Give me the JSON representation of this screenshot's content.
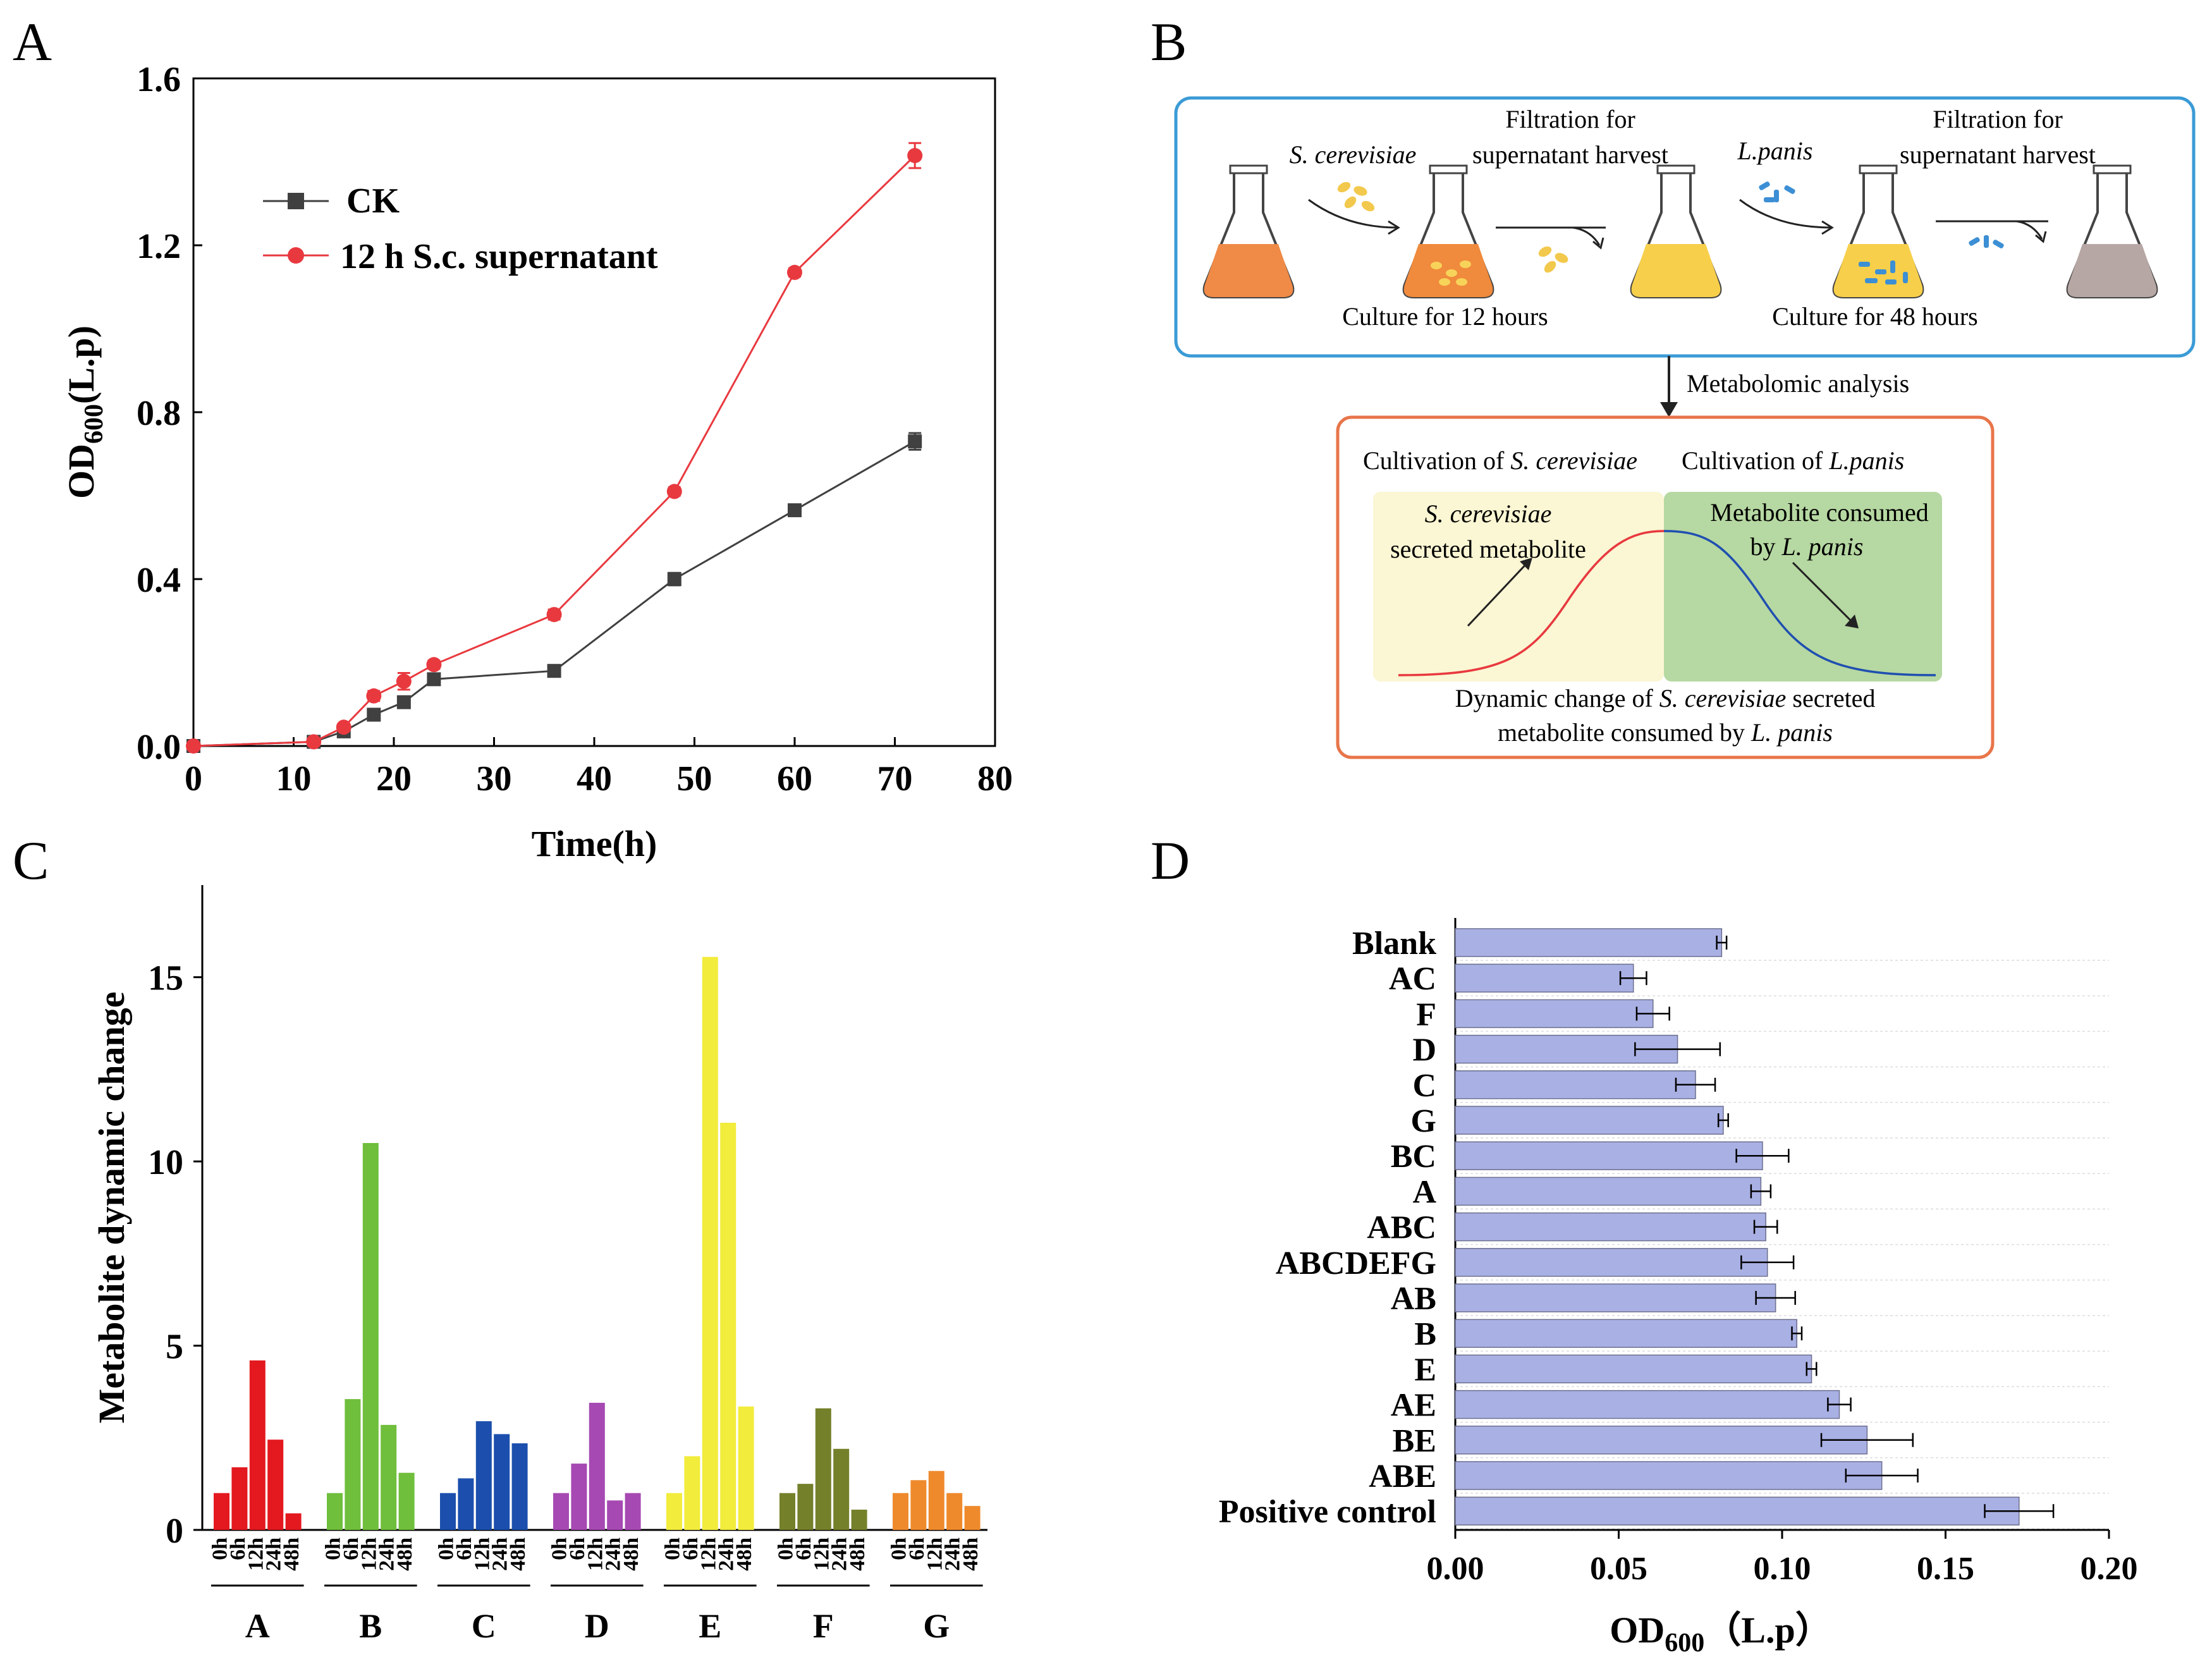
{
  "figure": {
    "panel_labels": [
      "A",
      "B",
      "C",
      "D"
    ]
  },
  "colors": {
    "ck": "#404040",
    "sc": "#e8393f",
    "bars_d": "#a9b0e4",
    "box1": "#3b9bd6",
    "box2": "#e8754a",
    "c_groups": [
      "#e3191f",
      "#6fbe3c",
      "#1c4fad",
      "#a649b3",
      "#f2ec3c",
      "#75802a",
      "#ef8a2c"
    ]
  },
  "chart_data": [
    {
      "panel": "A",
      "type": "line",
      "title": "",
      "xlabel": "Time(h)",
      "ylabel": "OD600(L.p)",
      "ylabel_main": "OD",
      "ylabel_sub": "600",
      "ylabel_tail": "(L.p)",
      "xlim": [
        0,
        80
      ],
      "ylim": [
        0,
        1.6
      ],
      "xticks": [
        0,
        10,
        20,
        30,
        40,
        50,
        60,
        70,
        80
      ],
      "yticks": [
        "0.0",
        "0.4",
        "0.8",
        "1.2",
        "1.6"
      ],
      "legend_position": "top-left",
      "series": [
        {
          "name": "CK",
          "x": [
            0,
            12,
            15,
            18,
            21,
            24,
            36,
            48,
            60,
            72
          ],
          "y": [
            0.0,
            0.01,
            0.035,
            0.075,
            0.105,
            0.16,
            0.18,
            0.4,
            0.565,
            0.73
          ],
          "err": [
            0,
            0,
            0.005,
            0.01,
            0.01,
            0.008,
            0.01,
            0.015,
            0.012,
            0.02
          ]
        },
        {
          "name": "12 h S.c. supernatant",
          "x": [
            0,
            12,
            15,
            18,
            21,
            24,
            36,
            48,
            60,
            72
          ],
          "y": [
            0.0,
            0.01,
            0.045,
            0.12,
            0.155,
            0.195,
            0.315,
            0.61,
            1.135,
            1.415
          ],
          "err": [
            0,
            0,
            0.008,
            0.012,
            0.02,
            0.01,
            0.012,
            0.01,
            0.01,
            0.03
          ]
        }
      ]
    },
    {
      "panel": "C",
      "type": "bar",
      "title": "",
      "xlabel": "",
      "ylabel": "Metabolite dynamic change",
      "ylim": [
        0,
        17.5
      ],
      "yticks": [
        "0",
        "5",
        "10",
        "15"
      ],
      "timepoints": [
        "0h",
        "6h",
        "12h",
        "24h",
        "48h"
      ],
      "groups": [
        {
          "name": "A",
          "values": [
            1.0,
            1.7,
            4.6,
            2.45,
            0.45
          ]
        },
        {
          "name": "B",
          "values": [
            1.0,
            3.55,
            10.5,
            2.85,
            1.55
          ]
        },
        {
          "name": "C",
          "values": [
            1.0,
            1.4,
            2.95,
            2.6,
            2.35
          ]
        },
        {
          "name": "D",
          "values": [
            1.0,
            1.8,
            3.45,
            0.8,
            1.0
          ]
        },
        {
          "name": "E",
          "values": [
            1.0,
            2.0,
            15.55,
            11.05,
            3.35
          ]
        },
        {
          "name": "F",
          "values": [
            1.0,
            1.25,
            3.3,
            2.2,
            0.55
          ]
        },
        {
          "name": "G",
          "values": [
            1.0,
            1.35,
            1.6,
            1.0,
            0.65
          ]
        }
      ]
    },
    {
      "panel": "D",
      "type": "bar",
      "orientation": "horizontal",
      "title": "",
      "xlabel": "OD600（L.p）",
      "xlabel_main": "OD",
      "xlabel_sub": "600",
      "xlabel_tail": "（L.p）",
      "ylabel": "",
      "xlim": [
        0,
        0.2
      ],
      "xticks": [
        "0.00",
        "0.05",
        "0.10",
        "0.15",
        "0.20"
      ],
      "categories": [
        "Blank",
        "AC",
        "F",
        "D",
        "C",
        "G",
        "BC",
        "A",
        "ABC",
        "ABCDEFG",
        "AB",
        "B",
        "E",
        "AE",
        "BE",
        "ABE",
        "Positive control"
      ],
      "values": [
        0.0815,
        0.0545,
        0.0605,
        0.068,
        0.0735,
        0.082,
        0.094,
        0.0935,
        0.095,
        0.0955,
        0.098,
        0.1045,
        0.109,
        0.1175,
        0.126,
        0.1305,
        0.1725
      ],
      "err": [
        0.0015,
        0.004,
        0.005,
        0.013,
        0.006,
        0.0015,
        0.008,
        0.003,
        0.0035,
        0.008,
        0.006,
        0.0015,
        0.0015,
        0.0035,
        0.014,
        0.011,
        0.0105
      ]
    }
  ],
  "panel_b": {
    "steps": {
      "sc_label": "S. cerevisiae",
      "filtration1_line1": "Filtration for",
      "filtration1_line2": "supernatant harvest",
      "lp_label": "L.panis",
      "filtration2_line1": "Filtration for",
      "filtration2_line2": "supernatant harvest",
      "culture12": "Culture for 12 hours",
      "culture48": "Culture for 48 hours"
    },
    "arrow_label": "Metabolomic analysis",
    "box2": {
      "header_1_pre": "Cultivation of ",
      "header_1_em": "S. cerevisiae",
      "header_2_pre": "Cultivation of ",
      "header_2_em": "L.panis",
      "left_line1": "S. cerevisiae",
      "left_line2": "secreted metabolite",
      "right_line1": "Metabolite consumed",
      "right_line2_pre": "by ",
      "right_line2_em": "L. panis",
      "caption1_pre": "Dynamic change of ",
      "caption1_em": "S. cerevisiae",
      "caption1_post": " secreted",
      "caption2_pre": "metabolite consumed by ",
      "caption2_em": "L. panis"
    }
  }
}
